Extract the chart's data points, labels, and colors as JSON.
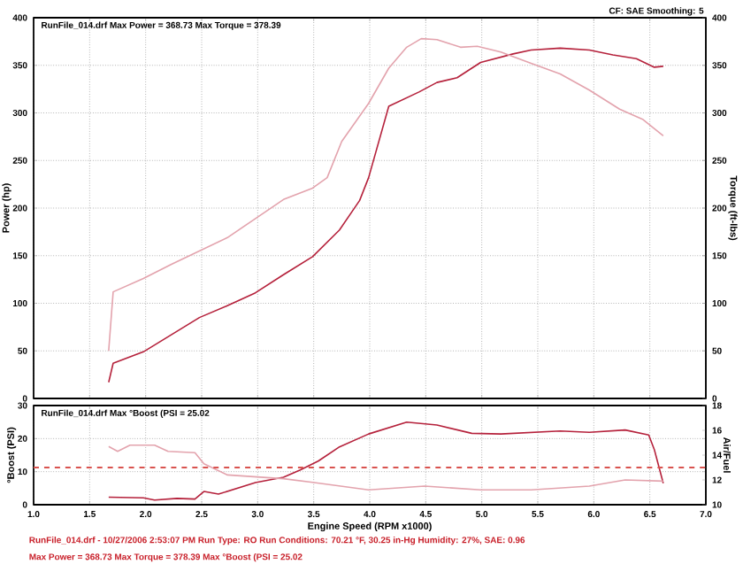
{
  "chart_data": [
    {
      "type": "line",
      "ylabel": "Power (hp)",
      "y2label": "Torque (ft-lbs)",
      "annotations": [
        "RunFile_014.drf Max Power = 368.73     Max Torque = 378.39",
        "CF: SAE  Smoothing: 5"
      ],
      "xlim": [
        1,
        7
      ],
      "xticks": [
        1,
        1.5,
        2,
        2.5,
        3,
        3.5,
        4,
        4.5,
        5,
        5.5,
        6,
        6.5,
        7
      ],
      "ylim": [
        0,
        400
      ],
      "yticks": [
        0,
        50,
        100,
        150,
        200,
        250,
        300,
        350,
        400
      ],
      "y2lim": [
        0,
        400
      ],
      "y2ticks": [
        0,
        50,
        100,
        150,
        200,
        250,
        300,
        350,
        400
      ],
      "tick_labels": "y",
      "grid": true,
      "series": [
        {
          "color": "#b5213b",
          "x": [
            1.67,
            1.71,
            1.98,
            2.48,
            2.72,
            2.98,
            3.23,
            3.49,
            3.73,
            3.91,
            3.99,
            4.17,
            4.44,
            4.6,
            4.78,
            4.99,
            5.28,
            5.44,
            5.7,
            5.96,
            6.17,
            6.38,
            6.54,
            6.62
          ],
          "values": [
            17,
            37,
            49,
            85,
            97,
            111,
            130,
            149,
            177,
            208,
            232,
            307,
            322,
            332,
            337,
            353,
            362,
            366,
            368,
            366,
            361,
            357,
            348,
            349
          ]
        },
        {
          "color": "#e3a3ad",
          "axis": "y2",
          "x": [
            1.67,
            1.71,
            1.98,
            2.23,
            2.48,
            2.73,
            2.98,
            3.23,
            3.49,
            3.62,
            3.75,
            3.99,
            4.17,
            4.33,
            4.46,
            4.6,
            4.81,
            4.96,
            5.17,
            5.44,
            5.7,
            5.96,
            6.23,
            6.44,
            6.62
          ],
          "values": [
            50,
            112,
            126,
            141,
            155,
            169,
            189,
            209,
            221,
            232,
            270,
            310,
            347,
            369,
            378,
            377,
            369,
            370,
            364,
            352,
            341,
            324,
            304,
            293,
            276
          ]
        }
      ]
    },
    {
      "type": "line",
      "xlabel": "Engine Speed (RPM x1000)",
      "ylabel": "°Boost (PSI)",
      "y2label": "Air/Fuel",
      "annotations": [
        "RunFile_014.drf Max °Boost (PSI = 25.02",
        "RunFile_014.drf - 10/27/2006 2:53:07 PM  Run Type: RO  Run Conditions: 70.21 °F, 30.25 in-Hg   Humidity:  27%, SAE: 0.96",
        "Max Power = 368.73  Max Torque = 378.39  Max °Boost (PSI = 25.02"
      ],
      "xlim": [
        1,
        7
      ],
      "xticks": [
        {
          "value": 1,
          "label": "1.0"
        },
        {
          "value": 1.5,
          "label": "1.5"
        },
        {
          "value": 2,
          "label": "2.0"
        },
        {
          "value": 2.5,
          "label": "2.5"
        },
        {
          "value": 3,
          "label": "3.0"
        },
        {
          "value": 3.5,
          "label": "3.5"
        },
        {
          "value": 4,
          "label": "4.0"
        },
        {
          "value": 4.5,
          "label": "4.5"
        },
        {
          "value": 5,
          "label": "5.0"
        },
        {
          "value": 5.5,
          "label": "5.5"
        },
        {
          "value": 6,
          "label": "6.0"
        },
        {
          "value": 6.5,
          "label": "6.5"
        },
        {
          "value": 7,
          "label": "7.0"
        }
      ],
      "ylim": [
        0,
        30
      ],
      "yticks": [
        0,
        10,
        20,
        30
      ],
      "y2lim": [
        10,
        18
      ],
      "y2ticks": [
        10,
        12,
        14,
        16,
        18
      ],
      "grid": true,
      "ref_lines": [
        {
          "axis": "y2",
          "value": 13,
          "color": "#d9534f",
          "line_style": "dashed"
        }
      ],
      "series": [
        {
          "color": "#b5213b",
          "x": [
            1.67,
            1.98,
            2.08,
            2.28,
            2.44,
            2.52,
            2.65,
            2.98,
            3.23,
            3.38,
            3.54,
            3.73,
            3.99,
            4.33,
            4.6,
            4.91,
            5.17,
            5.7,
            5.96,
            6.28,
            6.49,
            6.54,
            6.62
          ],
          "values": [
            2.3,
            2.1,
            1.4,
            1.9,
            1.7,
            4.0,
            3.2,
            6.7,
            8.3,
            10.5,
            13.2,
            17.5,
            21.4,
            25.0,
            24.1,
            21.6,
            21.4,
            22.3,
            21.9,
            22.6,
            21.1,
            16.7,
            6.5
          ]
        },
        {
          "color": "#e3a3ad",
          "axis": "y2",
          "x": [
            1.67,
            1.75,
            1.86,
            2.08,
            2.2,
            2.44,
            2.52,
            2.73,
            3.23,
            3.49,
            3.99,
            4.49,
            4.99,
            5.44,
            5.96,
            6.28,
            6.62
          ],
          "values": [
            14.7,
            14.3,
            14.8,
            14.8,
            14.3,
            14.2,
            13.3,
            12.4,
            12.1,
            11.8,
            11.2,
            11.5,
            11.2,
            11.2,
            11.5,
            12.0,
            11.9
          ]
        }
      ]
    }
  ]
}
